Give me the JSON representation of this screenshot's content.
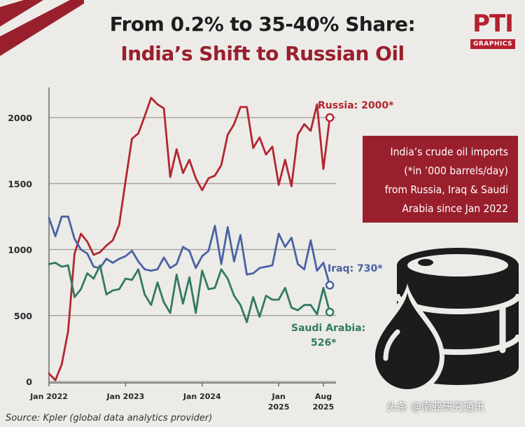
{
  "header": {
    "title_line1": "From 0.2% to 35-40% Share:",
    "title_line2": "India’s Shift to Russian Oil",
    "title_line2_color": "#9a1f2c"
  },
  "logo": {
    "main": "PTI",
    "sub": "GRAPHICS",
    "color": "#b5202e"
  },
  "infobox": {
    "lines": [
      "India’s crude oil imports",
      "(*in ’000 barrels/day)",
      "from Russia, Iraq & Saudi",
      "Arabia since Jan 2022"
    ],
    "background": "#9a1f2c"
  },
  "source": "Source: Kpler (global data analytics provider)",
  "watermark": "头条 @南亚研究通讯",
  "icons": {
    "barrel": "oil-barrel-icon",
    "drop": "oil-drop-icon"
  },
  "chart_data": {
    "type": "line",
    "title": "India’s crude oil imports from Russia, Iraq & Saudi Arabia since Jan 2022",
    "ylabel": "’000 barrels/day",
    "ylim": [
      0,
      2200
    ],
    "yticks": [
      0,
      500,
      1000,
      1500,
      2000
    ],
    "xlim": [
      0,
      43
    ],
    "x_ticks": [
      {
        "month_index": 0,
        "label": "Jan 2022"
      },
      {
        "month_index": 12,
        "label": "Jan 2023"
      },
      {
        "month_index": 24,
        "label": "Jan 2024"
      },
      {
        "month_index": 36,
        "label": "Jan\n2025"
      },
      {
        "month_index": 43,
        "label": "Aug\n2025"
      }
    ],
    "series": [
      {
        "name": "Russia",
        "color": "#b3262e",
        "end_label": "Russia: 2000*",
        "values": [
          60,
          10,
          130,
          380,
          970,
          1120,
          1060,
          960,
          980,
          1030,
          1070,
          1190,
          1520,
          1840,
          1880,
          2010,
          2150,
          2100,
          2070,
          1550,
          1760,
          1580,
          1680,
          1540,
          1450,
          1540,
          1560,
          1640,
          1870,
          1950,
          2080,
          2080,
          1770,
          1850,
          1720,
          1780,
          1490,
          1680,
          1480,
          1870,
          1950,
          1900,
          2100,
          1610,
          2000
        ]
      },
      {
        "name": "Iraq",
        "color": "#4a62a4",
        "end_label": "Iraq: 730*",
        "values": [
          1240,
          1100,
          1250,
          1250,
          1080,
          1000,
          970,
          870,
          860,
          930,
          900,
          930,
          950,
          990,
          910,
          850,
          840,
          850,
          940,
          860,
          890,
          1020,
          990,
          860,
          950,
          990,
          1180,
          890,
          1170,
          910,
          1110,
          810,
          820,
          860,
          870,
          880,
          1120,
          1020,
          1090,
          890,
          850,
          1070,
          840,
          900,
          730
        ]
      },
      {
        "name": "Saudi Arabia",
        "color": "#327a62",
        "end_label_lines": [
          "Saudi Arabia:",
          "526*"
        ],
        "values": [
          890,
          900,
          870,
          880,
          640,
          700,
          820,
          780,
          880,
          660,
          690,
          700,
          780,
          770,
          850,
          660,
          580,
          750,
          600,
          520,
          810,
          590,
          790,
          520,
          840,
          700,
          710,
          850,
          780,
          650,
          580,
          450,
          640,
          490,
          650,
          620,
          620,
          710,
          560,
          540,
          580,
          580,
          510,
          710,
          526
        ]
      }
    ]
  }
}
